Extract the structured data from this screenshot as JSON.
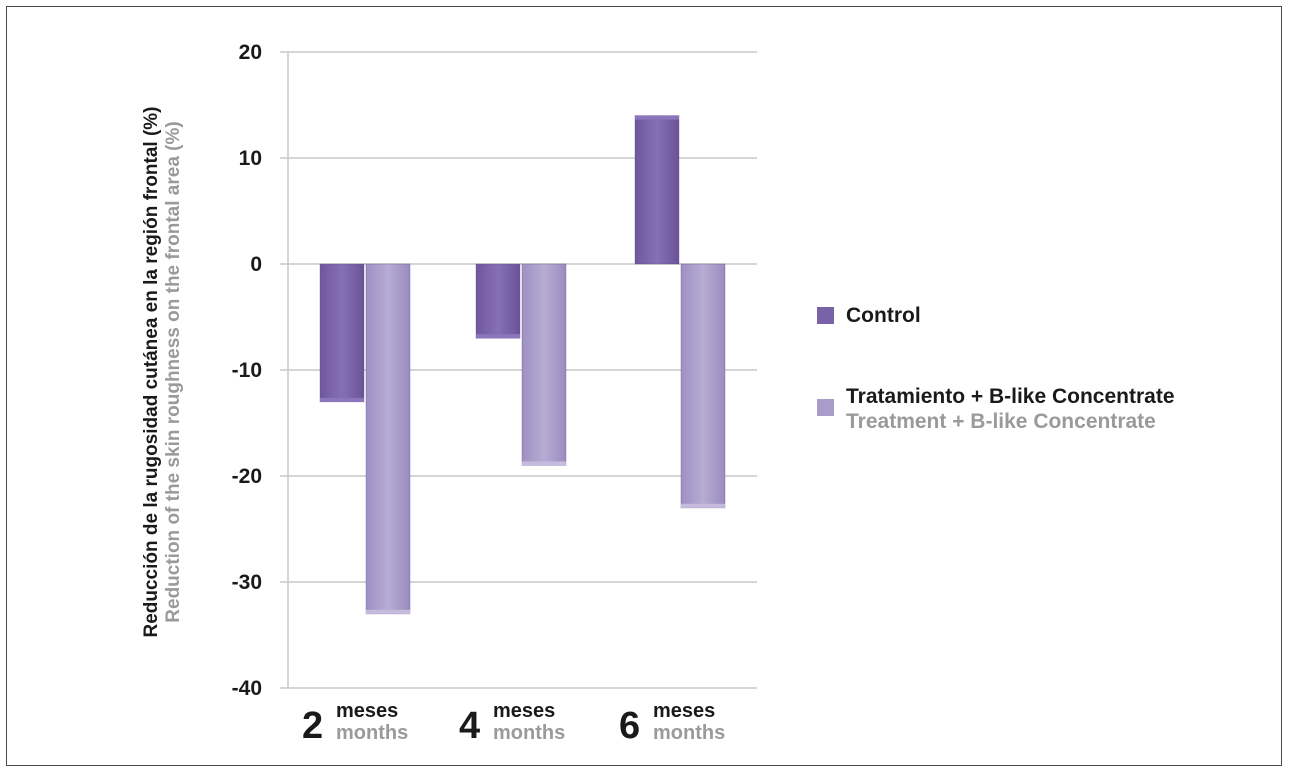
{
  "colors": {
    "control": "#7a62a8",
    "treatment": "#a99cc9",
    "axis_text": "#1a1a1a",
    "secondary_text": "#9a9a9a",
    "grid": "#c8c8c8"
  },
  "chart_data": {
    "type": "bar",
    "categories": [
      "2",
      "4",
      "6"
    ],
    "category_sublabels": {
      "es": "meses",
      "en": "months"
    },
    "series": [
      {
        "name": "Control",
        "color": "#7a62a8",
        "values": [
          -13,
          -7,
          14
        ]
      },
      {
        "name": "Tratamiento + B-like Concentrate",
        "name_en": "Treatment + B-like Concentrate",
        "color": "#a99cc9",
        "values": [
          -33,
          -19,
          -23
        ]
      }
    ],
    "ylabel": "Reducción de la rugosidad cutánea en la región frontal (%)",
    "ylabel_en": "Reduction of the skin roughness on the frontal area (%)",
    "ylim": [
      -40,
      20
    ],
    "yticks": [
      "20",
      "10",
      "0",
      "-10",
      "-20",
      "-30",
      "-40"
    ],
    "grid": true,
    "legend_position": "right"
  }
}
